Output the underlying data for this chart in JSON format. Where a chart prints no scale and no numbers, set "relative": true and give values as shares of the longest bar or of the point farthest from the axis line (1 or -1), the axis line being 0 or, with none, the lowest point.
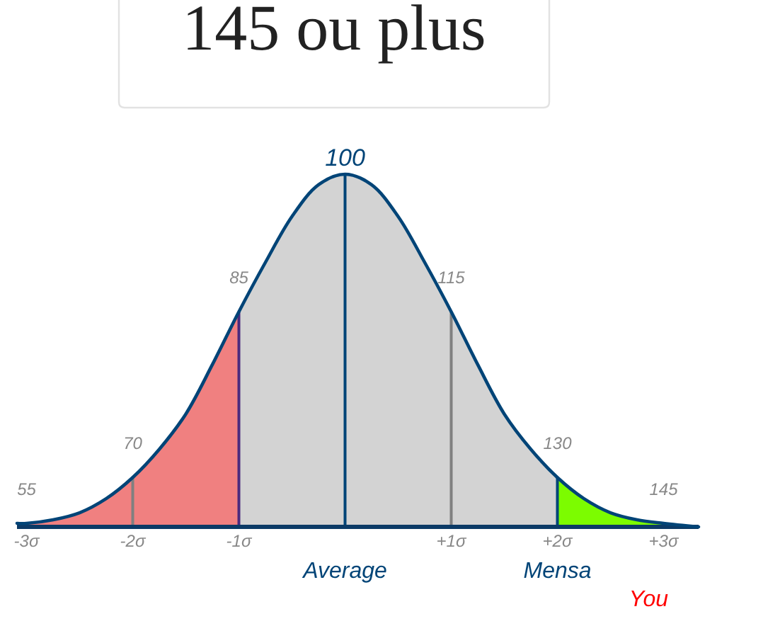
{
  "chart_data": {
    "type": "area",
    "title": "145 ou plus",
    "relative": true,
    "xlim": [
      -3.09,
      3.33
    ],
    "xticks": [
      {
        "value": -3,
        "label": "-3σ"
      },
      {
        "value": -2,
        "label": "-2σ"
      },
      {
        "value": -1,
        "label": "-1σ"
      },
      {
        "value": 1,
        "label": "+1σ"
      },
      {
        "value": 2,
        "label": "+2σ"
      },
      {
        "value": 3,
        "label": "+3σ"
      }
    ],
    "series": [
      {
        "color": "#f08080",
        "x": [
          -3.09,
          -3,
          -2.75,
          -2.5,
          -2.25,
          -2,
          -1.75,
          -1.5,
          -1.25,
          -1
        ],
        "values": [
          0.01,
          0.01,
          0.02,
          0.04,
          0.08,
          0.14,
          0.22,
          0.32,
          0.46,
          0.61
        ]
      },
      {
        "color": "#d3d3d3",
        "x": [
          -1,
          -0.75,
          -0.5,
          -0.25,
          0,
          0.25,
          0.5,
          0.75,
          1,
          1.25,
          1.5,
          1.75,
          2
        ],
        "values": [
          0.61,
          0.75,
          0.88,
          0.97,
          1,
          0.97,
          0.88,
          0.75,
          0.61,
          0.46,
          0.32,
          0.22,
          0.14
        ]
      },
      {
        "color": "#7cfc00",
        "x": [
          2,
          2.25,
          2.5,
          2.75,
          3,
          3.33
        ],
        "values": [
          0.14,
          0.08,
          0.04,
          0.02,
          0.01,
          0
        ]
      },
      {
        "type": "line",
        "color": "#004477",
        "x": [
          -3.09,
          -3,
          -2.75,
          -2.5,
          -2.25,
          -2,
          -1.75,
          -1.5,
          -1.25,
          -1,
          -0.75,
          -0.5,
          -0.25,
          0,
          0.25,
          0.5,
          0.75,
          1,
          1.25,
          1.5,
          1.75,
          2,
          2.25,
          2.5,
          2.75,
          3,
          3.33
        ],
        "values": [
          0.01,
          0.01,
          0.02,
          0.04,
          0.08,
          0.14,
          0.22,
          0.32,
          0.46,
          0.61,
          0.75,
          0.88,
          0.97,
          1,
          0.97,
          0.88,
          0.75,
          0.61,
          0.46,
          0.32,
          0.22,
          0.14,
          0.08,
          0.04,
          0.02,
          0.01,
          0
        ]
      }
    ],
    "ref_lines": [
      {
        "axis": "x",
        "value": -2,
        "color": "#808080"
      },
      {
        "axis": "x",
        "value": -1,
        "color": "#4b2a7e"
      },
      {
        "axis": "x",
        "value": 0,
        "label": "Average",
        "color": "#004477"
      },
      {
        "axis": "x",
        "value": 1,
        "color": "#808080"
      },
      {
        "axis": "x",
        "value": 2,
        "label": "Mensa",
        "color": "#004477"
      }
    ],
    "annotations": [
      {
        "text": "55",
        "x": -3,
        "y": 0.01
      },
      {
        "text": "70",
        "x": -2,
        "y": 0.14
      },
      {
        "text": "85",
        "x": -1,
        "y": 0.61
      },
      {
        "text": "100",
        "x": 0,
        "y": 1
      },
      {
        "text": "115",
        "x": 1,
        "y": 0.61
      },
      {
        "text": "130",
        "x": 2,
        "y": 0.14
      },
      {
        "text": "145",
        "x": 3,
        "y": 0.01
      },
      "You"
    ]
  }
}
